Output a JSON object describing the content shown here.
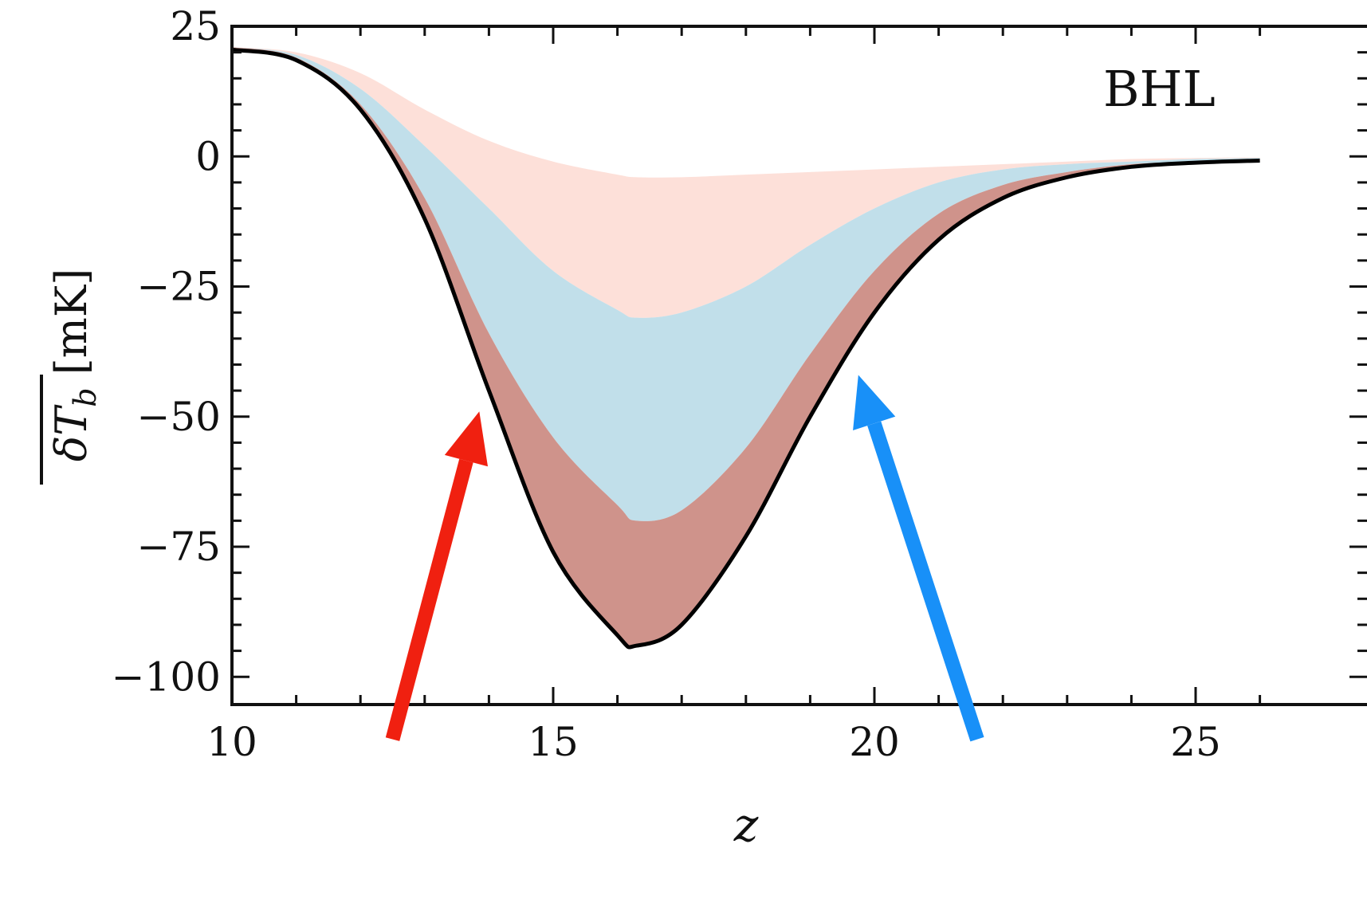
{
  "chart_data": {
    "type": "area",
    "annotation": "BHL",
    "xlabel": "z",
    "ylabel": "δT_b [mK]",
    "ylabel_parts": {
      "symbol": "δT",
      "subscript": "b",
      "unit": "[mK]"
    },
    "xlim": [
      10,
      26
    ],
    "ylim": [
      -105,
      25
    ],
    "x_ticks": [
      10,
      15,
      20,
      25
    ],
    "x_tick_labels": [
      "10",
      "15",
      "20",
      "25"
    ],
    "y_ticks": [
      25,
      0,
      -25,
      -50,
      -75,
      -100
    ],
    "y_tick_labels": [
      "25",
      "0",
      "−25",
      "−50",
      "−75",
      "−100"
    ],
    "grid": false,
    "x": [
      10,
      11,
      12,
      13,
      14,
      15,
      16,
      16.3,
      17,
      18,
      19,
      20,
      21,
      22,
      23,
      24,
      25,
      26
    ],
    "series": [
      {
        "values": [
          21,
          20,
          16,
          9,
          3,
          -1,
          -3.5,
          -4,
          -4,
          -3.5,
          -3,
          -2.5,
          -2,
          -1.5,
          -1,
          -0.5,
          -0.3,
          -0.2
        ],
        "color": "#fde0d9"
      },
      {
        "values": [
          21,
          19.5,
          13,
          2,
          -10,
          -22,
          -29.5,
          -31,
          -30,
          -25,
          -17,
          -10,
          -5,
          -2.5,
          -1.5,
          -1,
          -0.5,
          -0.3
        ],
        "color": "#c1dfea"
      },
      {
        "values": [
          21,
          19,
          10,
          -8,
          -34,
          -54,
          -67,
          -70,
          -68,
          -56,
          -38,
          -22,
          -11,
          -5.5,
          -3,
          -1.5,
          -1,
          -0.5
        ],
        "color": "#cf938b"
      },
      {
        "values": [
          20.5,
          18.5,
          9,
          -12,
          -45,
          -76,
          -92,
          -94,
          -90,
          -73,
          -50,
          -30,
          -16,
          -8,
          -4,
          -2,
          -1.2,
          -0.8
        ],
        "color": "#000000"
      }
    ],
    "arrows": [
      {
        "color": "#f02010",
        "from": [
          12.5,
          -112
        ],
        "to": [
          13.85,
          -49
        ]
      },
      {
        "color": "#1890f8",
        "from": [
          21.6,
          -112
        ],
        "to": [
          19.75,
          -42
        ]
      }
    ]
  }
}
